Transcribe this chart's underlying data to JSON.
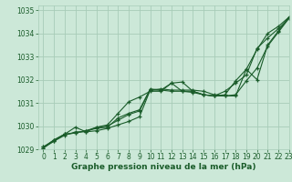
{
  "background_color": "#cce8d8",
  "grid_color": "#a8ccb8",
  "line_color": "#1a5c2a",
  "xlabel": "Graphe pression niveau de la mer (hPa)",
  "ylim": [
    1029,
    1035.2
  ],
  "xlim": [
    -0.5,
    23
  ],
  "yticks": [
    1029,
    1030,
    1031,
    1032,
    1033,
    1034,
    1035
  ],
  "xticks": [
    0,
    1,
    2,
    3,
    4,
    5,
    6,
    7,
    8,
    9,
    10,
    11,
    12,
    13,
    14,
    15,
    16,
    17,
    18,
    19,
    20,
    21,
    22,
    23
  ],
  "series": [
    [
      1029.1,
      1029.35,
      1029.6,
      1029.75,
      1029.75,
      1029.8,
      1029.9,
      1030.05,
      1030.2,
      1030.4,
      1031.55,
      1031.55,
      1031.85,
      1031.9,
      1031.5,
      1031.35,
      1031.3,
      1031.3,
      1031.3,
      1032.45,
      1033.3,
      1034.0,
      1034.3,
      1034.7
    ],
    [
      1029.1,
      1029.4,
      1029.65,
      1029.7,
      1029.8,
      1029.9,
      1029.95,
      1030.35,
      1030.55,
      1030.7,
      1031.6,
      1031.55,
      1031.5,
      1031.5,
      1031.45,
      1031.35,
      1031.3,
      1031.35,
      1031.95,
      1032.45,
      1032.0,
      1033.5,
      1034.1,
      1034.7
    ],
    [
      1029.05,
      1029.35,
      1029.65,
      1029.95,
      1029.75,
      1029.95,
      1030.05,
      1030.55,
      1031.05,
      1031.25,
      1031.5,
      1031.5,
      1031.85,
      1031.5,
      1031.5,
      1031.35,
      1031.3,
      1031.5,
      1031.85,
      1032.2,
      1033.35,
      1033.8,
      1034.2,
      1034.65
    ],
    [
      1029.05,
      1029.4,
      1029.65,
      1029.7,
      1029.8,
      1029.95,
      1030.0,
      1030.25,
      1030.5,
      1030.65,
      1031.55,
      1031.6,
      1031.55,
      1031.55,
      1031.55,
      1031.5,
      1031.35,
      1031.3,
      1031.35,
      1031.95,
      1032.5,
      1033.45,
      1034.05,
      1034.65
    ]
  ],
  "marker": "+",
  "markersize": 3,
  "markeredgewidth": 0.9,
  "linewidth": 0.8,
  "title_fontsize": 7,
  "tick_fontsize": 5.5,
  "xlabel_fontsize": 6.5
}
